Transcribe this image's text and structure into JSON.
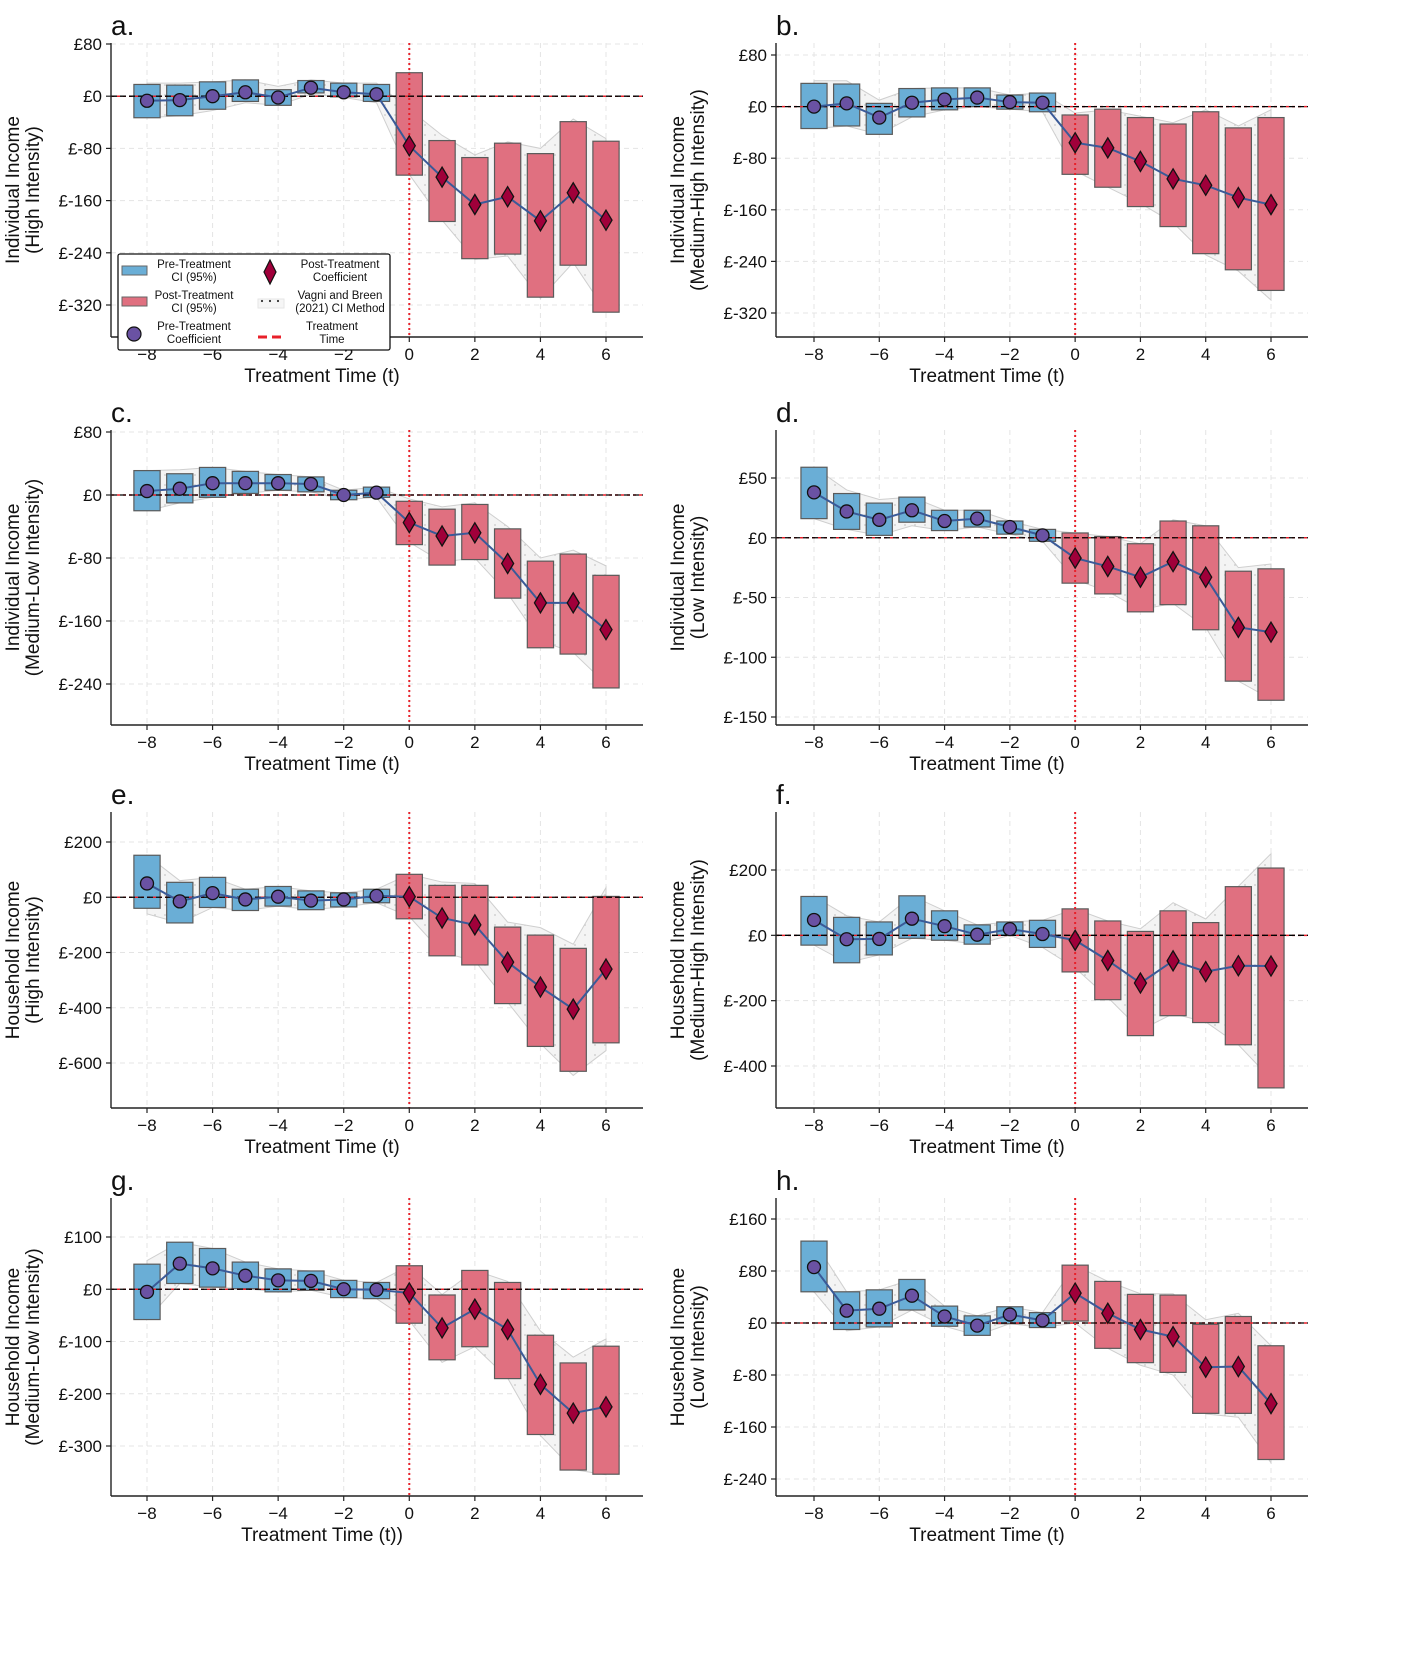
{
  "figure": {
    "colors": {
      "pre_ci": "#6aaed6",
      "post_ci": "#e07080",
      "pre_coef": "#6a52a3",
      "post_coef": "#a0003a",
      "coef_line": "#3a5a98",
      "treatment_line": "#e8202a",
      "zero_line": "#000000",
      "vb_band": "#d8d8d8"
    },
    "legend": {
      "pre_ci": [
        "Pre-Treatment",
        "CI (95%)"
      ],
      "post_ci": [
        "Post-Treatment",
        "CI (95%)"
      ],
      "pre_coef": [
        "Pre-Treatment",
        "Coefficient"
      ],
      "post_coef": [
        "Post-Treatment",
        "Coefficient"
      ],
      "vb": [
        "Vagni and Breen",
        "(2021) CI Method"
      ],
      "treat": [
        "Treatment",
        "Time"
      ],
      "placement": "lower-left of panel a"
    }
  },
  "chart_data": [
    {
      "panel": "a.",
      "type": "line",
      "ylabel": [
        "Individual Income",
        "(High Intensity)"
      ],
      "xlabel": "Treatment Time (t)",
      "x": [
        -8,
        -7,
        -6,
        -5,
        -4,
        -3,
        -2,
        -1,
        0,
        1,
        2,
        3,
        4,
        5,
        6
      ],
      "xticks": [
        -8,
        -6,
        -4,
        -2,
        0,
        2,
        4,
        6
      ],
      "xtick_labels": [
        "−8",
        "−6",
        "−4",
        "−2",
        "0",
        "2",
        "4",
        "6"
      ],
      "ylim": [
        -370,
        80
      ],
      "yticks": [
        80,
        0,
        -80,
        -160,
        -240,
        -320
      ],
      "ytick_labels": [
        "£80",
        "£0",
        "£-80",
        "£-160",
        "£-240",
        "£-320"
      ],
      "coef": [
        -7,
        -6,
        0,
        6,
        -2,
        13,
        6,
        3,
        -76,
        -124,
        -166,
        -154,
        -191,
        -148,
        -190
      ],
      "ci_low": [
        -33,
        -30,
        -20,
        -8,
        -14,
        5,
        -1,
        -8,
        -121,
        -192,
        -249,
        -242,
        -308,
        -259,
        -331
      ],
      "ci_high": [
        18,
        17,
        22,
        25,
        10,
        24,
        20,
        18,
        36,
        -68,
        -94,
        -72,
        -88,
        -39,
        -69
      ],
      "vb_low": [
        -33,
        -30,
        -22,
        -10,
        -14,
        3,
        -2,
        -10,
        -120,
        -190,
        -250,
        -245,
        -310,
        -255,
        -330
      ],
      "vb_high": [
        20,
        20,
        22,
        25,
        15,
        25,
        20,
        20,
        -20,
        -60,
        -90,
        -70,
        -80,
        -35,
        -65
      ],
      "grid": true,
      "legend": true
    },
    {
      "panel": "b.",
      "type": "line",
      "ylabel": [
        "Individual Income",
        "(Medium-High Intensity)"
      ],
      "xlabel": "Treatment Time (t)",
      "x": [
        -8,
        -7,
        -6,
        -5,
        -4,
        -3,
        -2,
        -1,
        0,
        1,
        2,
        3,
        4,
        5,
        6
      ],
      "xticks": [
        -8,
        -6,
        -4,
        -2,
        0,
        2,
        4,
        6
      ],
      "xtick_labels": [
        "−8",
        "−6",
        "−4",
        "−2",
        "0",
        "2",
        "4",
        "6"
      ],
      "ylim": [
        -355,
        95
      ],
      "yticks": [
        80,
        0,
        -80,
        -160,
        -240,
        -320
      ],
      "ytick_labels": [
        "£80",
        "£0",
        "£-80",
        "£-160",
        "£-240",
        "£-320"
      ],
      "coef": [
        0,
        5,
        -17,
        6,
        11,
        14,
        7,
        6,
        -56,
        -64,
        -85,
        -112,
        -122,
        -141,
        -152
      ],
      "ci_low": [
        -34,
        -30,
        -43,
        -16,
        -5,
        0,
        -4,
        -8,
        -105,
        -125,
        -155,
        -186,
        -228,
        -253,
        -285
      ],
      "ci_high": [
        36,
        35,
        5,
        28,
        29,
        29,
        18,
        21,
        -13,
        -4,
        -17,
        -27,
        -8,
        -33,
        -17
      ],
      "vb_low": [
        -34,
        -30,
        -43,
        -16,
        -5,
        0,
        -4,
        -8,
        -100,
        -125,
        -150,
        -180,
        -230,
        -255,
        -300
      ],
      "vb_high": [
        40,
        40,
        10,
        28,
        29,
        29,
        18,
        21,
        -10,
        -5,
        -15,
        -25,
        -5,
        -30,
        -5
      ],
      "grid": true,
      "legend": false
    },
    {
      "panel": "c.",
      "type": "line",
      "ylabel": [
        "Individual Income",
        "(Medium-Low Intensity)"
      ],
      "xlabel": "Treatment Time (t)",
      "x": [
        -8,
        -7,
        -6,
        -5,
        -4,
        -3,
        -2,
        -1,
        0,
        1,
        2,
        3,
        4,
        5,
        6
      ],
      "xticks": [
        -8,
        -6,
        -4,
        -2,
        0,
        2,
        4,
        6
      ],
      "xtick_labels": [
        "−8",
        "−6",
        "−4",
        "−2",
        "0",
        "2",
        "4",
        "6"
      ],
      "ylim": [
        -290,
        80
      ],
      "yticks": [
        80,
        0,
        -80,
        -160,
        -240
      ],
      "ytick_labels": [
        "£80",
        "£0",
        "£-80",
        "£-160",
        "£-240"
      ],
      "coef": [
        5,
        8,
        15,
        15,
        15,
        14,
        0,
        3,
        -35,
        -52,
        -48,
        -87,
        -137,
        -137,
        -171
      ],
      "ci_low": [
        -20,
        -10,
        -3,
        2,
        6,
        4,
        -6,
        -3,
        -63,
        -89,
        -82,
        -131,
        -194,
        -202,
        -245
      ],
      "ci_high": [
        31,
        27,
        35,
        30,
        26,
        23,
        6,
        10,
        -8,
        -18,
        -12,
        -43,
        -84,
        -75,
        -102
      ],
      "vb_low": [
        -20,
        -10,
        -3,
        2,
        6,
        4,
        -6,
        -3,
        -60,
        -85,
        -80,
        -125,
        -185,
        -200,
        -240
      ],
      "vb_high": [
        31,
        32,
        35,
        30,
        26,
        23,
        6,
        10,
        -5,
        -15,
        -10,
        -40,
        -80,
        -70,
        -90
      ],
      "grid": true,
      "legend": false
    },
    {
      "panel": "d.",
      "type": "line",
      "ylabel": [
        "Individual Income",
        "(Low Intensity)"
      ],
      "xlabel": "Treatment Time (t)",
      "x": [
        -8,
        -7,
        -6,
        -5,
        -4,
        -3,
        -2,
        -1,
        0,
        1,
        2,
        3,
        4,
        5,
        6
      ],
      "xticks": [
        -8,
        -6,
        -4,
        -2,
        0,
        2,
        4,
        6
      ],
      "xtick_labels": [
        "−8",
        "−6",
        "−4",
        "−2",
        "0",
        "2",
        "4",
        "6"
      ],
      "ylim": [
        -155,
        90
      ],
      "yticks": [
        50,
        0,
        -50,
        -100,
        -150
      ],
      "ytick_labels": [
        "£50",
        "£0",
        "£-50",
        "£-100",
        "£-150"
      ],
      "coef": [
        38,
        22,
        15,
        23,
        14,
        16,
        9,
        2,
        -17,
        -24,
        -33,
        -20,
        -33,
        -75,
        -79
      ],
      "ci_low": [
        16,
        7,
        2,
        13,
        6,
        9,
        3,
        -3,
        -38,
        -47,
        -62,
        -56,
        -77,
        -120,
        -136
      ],
      "ci_high": [
        59,
        37,
        29,
        34,
        23,
        23,
        14,
        7,
        4,
        1,
        -5,
        14,
        10,
        -28,
        -26
      ],
      "vb_low": [
        16,
        7,
        2,
        10,
        6,
        9,
        3,
        -3,
        -35,
        -45,
        -60,
        -55,
        -75,
        -120,
        -135
      ],
      "vb_high": [
        59,
        40,
        32,
        34,
        23,
        23,
        14,
        7,
        4,
        1,
        -5,
        15,
        10,
        -25,
        -22
      ],
      "grid": true,
      "legend": false
    },
    {
      "panel": "e.",
      "type": "line",
      "ylabel": [
        "Household Income",
        "(High Intensity)"
      ],
      "xlabel": "Treatment Time (t)",
      "x": [
        -8,
        -7,
        -6,
        -5,
        -4,
        -3,
        -2,
        -1,
        0,
        1,
        2,
        3,
        4,
        5,
        6
      ],
      "xticks": [
        -8,
        -6,
        -4,
        -2,
        0,
        2,
        4,
        6
      ],
      "xtick_labels": [
        "−8",
        "−6",
        "−4",
        "−2",
        "0",
        "2",
        "4",
        "6"
      ],
      "ylim": [
        -770,
        280
      ],
      "yticks": [
        200,
        0,
        -200,
        -400,
        -600
      ],
      "ytick_labels": [
        "£200",
        "£0",
        "£-200",
        "£-400",
        "£-600"
      ],
      "coef": [
        50,
        -15,
        15,
        -8,
        2,
        -12,
        -8,
        5,
        2,
        -75,
        -100,
        -235,
        -325,
        -405,
        -260
      ],
      "ci_low": [
        -40,
        -93,
        -37,
        -48,
        -32,
        -45,
        -35,
        -20,
        -78,
        -212,
        -245,
        -385,
        -540,
        -630,
        -527
      ],
      "ci_high": [
        152,
        54,
        72,
        29,
        39,
        23,
        16,
        29,
        83,
        43,
        43,
        -108,
        -137,
        -185,
        3
      ],
      "vb_low": [
        -60,
        -93,
        -37,
        -48,
        -32,
        -45,
        -35,
        -20,
        -70,
        -200,
        -230,
        -380,
        -530,
        -645,
        -555
      ],
      "vb_high": [
        152,
        60,
        72,
        29,
        39,
        23,
        16,
        29,
        83,
        55,
        50,
        -90,
        -110,
        -170,
        35
      ],
      "grid": true,
      "legend": false
    },
    {
      "panel": "f.",
      "type": "line",
      "ylabel": [
        "Household Income",
        "(Medium-High Intensity)"
      ],
      "xlabel": "Treatment Time (t)",
      "x": [
        -8,
        -7,
        -6,
        -5,
        -4,
        -3,
        -2,
        -1,
        0,
        1,
        2,
        3,
        4,
        5,
        6
      ],
      "xticks": [
        -8,
        -6,
        -4,
        -2,
        0,
        2,
        4,
        6
      ],
      "xtick_labels": [
        "−8",
        "−6",
        "−4",
        "−2",
        "0",
        "2",
        "4",
        "6"
      ],
      "ylim": [
        -540,
        360
      ],
      "yticks": [
        200,
        0,
        -200,
        -400
      ],
      "ytick_labels": [
        "£200",
        "£0",
        "£-200",
        "£-400"
      ],
      "coef": [
        47,
        -12,
        -11,
        51,
        28,
        2,
        19,
        4,
        -15,
        -77,
        -146,
        -78,
        -111,
        -93,
        -94
      ],
      "ci_low": [
        -30,
        -84,
        -60,
        -9,
        -15,
        -27,
        0,
        -37,
        -112,
        -197,
        -307,
        -246,
        -267,
        -335,
        -467
      ],
      "ci_high": [
        119,
        55,
        41,
        121,
        75,
        32,
        41,
        46,
        81,
        44,
        12,
        75,
        39,
        149,
        206
      ],
      "vb_low": [
        -30,
        -84,
        -60,
        -9,
        -15,
        -27,
        0,
        -37,
        -100,
        -190,
        -290,
        -240,
        -265,
        -335,
        -440
      ],
      "vb_high": [
        119,
        60,
        41,
        121,
        75,
        32,
        41,
        46,
        81,
        44,
        20,
        100,
        50,
        150,
        250
      ],
      "grid": true,
      "legend": false
    },
    {
      "panel": "g.",
      "type": "line",
      "ylabel": [
        "Household Income",
        "(Medium-Low Intensity)"
      ],
      "xlabel": "Treatment Time (t))",
      "x": [
        -8,
        -7,
        -6,
        -5,
        -4,
        -3,
        -2,
        -1,
        0,
        1,
        2,
        3,
        4,
        5,
        6
      ],
      "xticks": [
        -8,
        -6,
        -4,
        -2,
        0,
        2,
        4,
        6
      ],
      "xtick_labels": [
        "−8",
        "−6",
        "−4",
        "−2",
        "0",
        "2",
        "4",
        "6"
      ],
      "ylim": [
        -400,
        160
      ],
      "yticks": [
        100,
        0,
        -100,
        -200,
        -300
      ],
      "ytick_labels": [
        "£100",
        "£0",
        "£-100",
        "£-200",
        "£-300"
      ],
      "coef": [
        -5,
        49,
        40,
        26,
        17,
        16,
        0,
        -1,
        -7,
        -74,
        -38,
        -77,
        -182,
        -237,
        -225
      ],
      "ci_low": [
        -58,
        11,
        4,
        1,
        -5,
        -2,
        -16,
        -18,
        -65,
        -135,
        -110,
        -171,
        -278,
        -346,
        -354
      ],
      "ci_high": [
        48,
        90,
        78,
        52,
        39,
        35,
        17,
        13,
        45,
        -11,
        36,
        13,
        -88,
        -141,
        -109
      ],
      "vb_low": [
        -58,
        11,
        4,
        1,
        -5,
        -2,
        -16,
        -18,
        -60,
        -140,
        -110,
        -170,
        -280,
        -345,
        -355
      ],
      "vb_high": [
        55,
        90,
        78,
        52,
        39,
        35,
        17,
        13,
        45,
        -10,
        36,
        15,
        -80,
        -130,
        -95
      ],
      "grid": true,
      "legend": false
    },
    {
      "panel": "h.",
      "type": "line",
      "ylabel": [
        "Household Income",
        "(Low Intensity)"
      ],
      "xlabel": "Treatment Time (t)",
      "x": [
        -8,
        -7,
        -6,
        -5,
        -4,
        -3,
        -2,
        -1,
        0,
        1,
        2,
        3,
        4,
        5,
        6
      ],
      "xticks": [
        -8,
        -6,
        -4,
        -2,
        0,
        2,
        4,
        6
      ],
      "xtick_labels": [
        "−8",
        "−6",
        "−4",
        "−2",
        "0",
        "2",
        "4",
        "6"
      ],
      "ylim": [
        -270,
        180
      ],
      "yticks": [
        160,
        80,
        0,
        -80,
        -160,
        -240
      ],
      "ytick_labels": [
        "£160",
        "£80",
        "£0",
        "£-80",
        "£-160",
        "£-240"
      ],
      "coef": [
        86,
        19,
        22,
        42,
        10,
        -4,
        13,
        4,
        46,
        15,
        -10,
        -21,
        -68,
        -67,
        -124
      ],
      "ci_low": [
        48,
        -10,
        -6,
        20,
        -5,
        -19,
        -1,
        -7,
        3,
        -39,
        -61,
        -76,
        -139,
        -139,
        -210
      ],
      "ci_high": [
        126,
        48,
        51,
        67,
        26,
        11,
        25,
        16,
        89,
        64,
        44,
        43,
        -2,
        10,
        -35
      ],
      "vb_low": [
        48,
        -12,
        -6,
        20,
        -5,
        -19,
        -1,
        -7,
        0,
        -39,
        -65,
        -80,
        -140,
        -145,
        -215
      ],
      "vb_high": [
        126,
        48,
        51,
        67,
        26,
        11,
        25,
        16,
        89,
        64,
        45,
        45,
        5,
        15,
        -35
      ],
      "grid": true,
      "legend": false
    }
  ]
}
